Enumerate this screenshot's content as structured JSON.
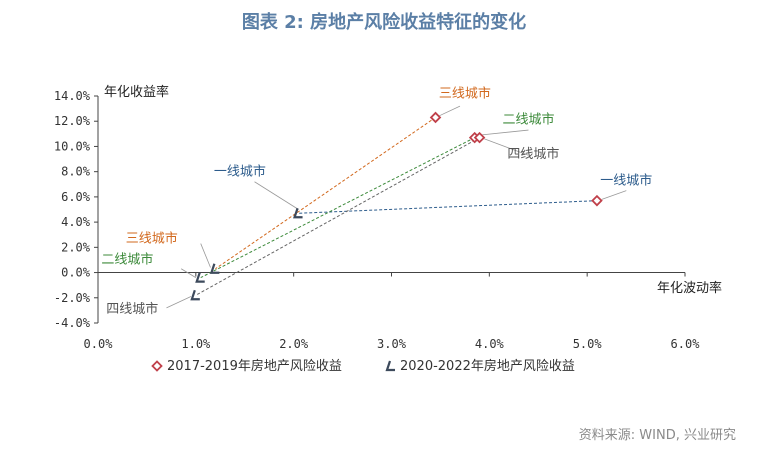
{
  "figure": {
    "title": "图表 2:  房地产风险收益特征的变化",
    "source": "资料来源: WIND, 兴业研究"
  },
  "chart_data": {
    "type": "scatter",
    "xlabel": "年化波动率",
    "ylabel": "年化收益率",
    "xlim": [
      0,
      6
    ],
    "ylim": [
      -4,
      14
    ],
    "x_ticks": [
      "0.0%",
      "1.0%",
      "2.0%",
      "3.0%",
      "4.0%",
      "5.0%",
      "6.0%"
    ],
    "y_ticks": [
      "14.0%",
      "12.0%",
      "10.0%",
      "8.0%",
      "6.0%",
      "4.0%",
      "2.0%",
      "0.0%",
      "-2.0%",
      "-4.0%"
    ],
    "series": [
      {
        "name": "2017-2019年房地产风险收益",
        "marker": "diamond",
        "color": "#c0404a",
        "points": [
          {
            "label": "一线城市",
            "x": 5.1,
            "y": 5.7
          },
          {
            "label": "二线城市",
            "x": 3.85,
            "y": 10.7
          },
          {
            "label": "三线城市",
            "x": 3.45,
            "y": 12.3
          },
          {
            "label": "四线城市",
            "x": 3.9,
            "y": 10.7
          }
        ]
      },
      {
        "name": "2020-2022年房地产风险收益",
        "marker": "chevron",
        "color": "#3d4a5c",
        "points": [
          {
            "label": "一线城市",
            "x": 2.05,
            "y": 4.7
          },
          {
            "label": "二线城市",
            "x": 1.05,
            "y": -0.4
          },
          {
            "label": "三线城市",
            "x": 1.2,
            "y": 0.3
          },
          {
            "label": "四线城市",
            "x": 1.0,
            "y": -1.8
          }
        ]
      }
    ],
    "annotations": [
      {
        "text": "一线城市",
        "color": "#2d5c8c",
        "x": 5.4,
        "y": 7.0
      },
      {
        "text": "二线城市",
        "color": "#3c8a3a",
        "x": 4.4,
        "y": 11.8
      },
      {
        "text": "三线城市",
        "color": "#d2691e",
        "x": 3.75,
        "y": 13.9
      },
      {
        "text": "四线城市",
        "color": "#555555",
        "x": 4.45,
        "y": 9.1
      },
      {
        "text": "一线城市",
        "color": "#2d5c8c",
        "x": 1.45,
        "y": 7.7
      },
      {
        "text": "三线城市",
        "color": "#d2691e",
        "x": 0.55,
        "y": 2.4
      },
      {
        "text": "二线城市",
        "color": "#3c8a3a",
        "x": 0.3,
        "y": 0.7
      },
      {
        "text": "四线城市",
        "color": "#555555",
        "x": 0.35,
        "y": -3.2
      }
    ]
  }
}
